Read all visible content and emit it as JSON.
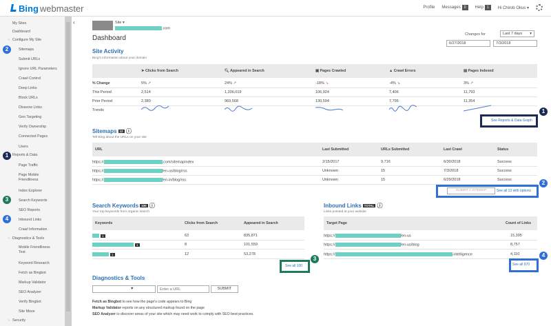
{
  "app": {
    "brand": "Bing",
    "product": "webmaster"
  },
  "topbar": {
    "profile": "Profile",
    "messages": "Messages",
    "messages_count": "0",
    "help": "Help",
    "help_count": "1",
    "user": "Hi Chirob Okus ▾"
  },
  "sidebar": {
    "items": [
      "My Sites",
      "Dashboard",
      "Configure My Site",
      "Sitemaps",
      "Submit URLs",
      "Ignore URL Parameters",
      "Crawl Control",
      "Deep Links",
      "Block URLs",
      "Disavow Links",
      "Geo Targeting",
      "Verify Ownership",
      "Connected Pages",
      "Users",
      "Reports & Data",
      "Page Traffic",
      "Page Mobile",
      "Friendliness",
      "Index Explorer",
      "Search Keywords",
      "SEO Reports",
      "Inbound Links",
      "Crawl Information",
      "Diagnostics & Tools",
      "Mobile Friendliness",
      "Test",
      "Keyword Research",
      "Fetch as Bingbot",
      "Markup Validator",
      "SEO Analyzer",
      "Verify Bingbot",
      "Site Move",
      "Security"
    ]
  },
  "badges": {
    "one": "1",
    "two": "2",
    "three": "3",
    "four": "4"
  },
  "header": {
    "site_label": "Site ▾",
    "site_suffix": ".com",
    "page_title": "Dashboard",
    "changes_for": "Changes for",
    "range": "Last 7 days",
    "date_from": "6/27/2018",
    "date_to": "7/3/2018"
  },
  "activity": {
    "title": "Site Activity",
    "sub": "Bing's information about your domain",
    "cols": [
      "Clicks from Search",
      "Appeared in Search",
      "Pages Crawled",
      "Crawl Errors",
      "Pages Indexed"
    ],
    "row_labels": [
      "% Change",
      "This Period",
      "Prior Period",
      "Trends"
    ],
    "change": [
      "5%",
      "24%",
      "-18%",
      "-4%",
      "3%"
    ],
    "this_period": [
      "2,514",
      "1,206,019",
      "106,924",
      "7,406",
      "11,793"
    ],
    "prior": [
      "2,380",
      "969,568",
      "130,594",
      "7,795",
      "11,354"
    ],
    "link": "See Reports & Data Graph"
  },
  "sitemaps": {
    "title": "Sitemaps",
    "count": "12",
    "sub": "Tell Bing about the URLs on your site",
    "headers": [
      "URL",
      "Last Submitted",
      "URLs Submitted",
      "Last Crawl",
      "Status"
    ],
    "rows": [
      {
        "prefix": "https://",
        "suffix": ".com/sitemapindex",
        "submitted": "2/15/2017",
        "urls": "9,716",
        "crawl": "6/30/2018",
        "status": "Success"
      },
      {
        "prefix": "https://",
        "suffix": "/en-us/blog/rss",
        "submitted": "Unknown",
        "urls": "15",
        "crawl": "7/3/2018",
        "status": "Success"
      },
      {
        "prefix": "https://",
        "suffix": "/en-in/blog/rss",
        "submitted": "Unknown",
        "urls": "15",
        "crawl": "6/29/2018",
        "status": "Success"
      }
    ],
    "submit": "SUBMIT A SITEMAP",
    "see_all": "See all 12 with options"
  },
  "keywords": {
    "title": "Search Keywords",
    "count": "100",
    "sub": "Your top keywords from organic search",
    "headers": [
      "Keywords",
      "Clicks from Search",
      "Appeared in Search"
    ],
    "rows": [
      {
        "chip": "1",
        "clicks": "63",
        "appeared": "835,871"
      },
      {
        "chip": "1",
        "clicks": "8",
        "appeared": "101,559"
      },
      {
        "chip": "1",
        "clicks": "12",
        "appeared": "53,278"
      }
    ],
    "see_all": "See all 100"
  },
  "inbound": {
    "title": "Inbound Links",
    "count": "TOTAL",
    "sub": "Links pointed at your website",
    "headers": [
      "Target Page",
      "Count of Links"
    ],
    "rows": [
      {
        "prefix": "https://",
        "suffix": "/en-us",
        "count": "15,395"
      },
      {
        "prefix": "https://",
        "suffix": "/en-us/blog",
        "count": "8,757"
      },
      {
        "prefix": "https://",
        "suffix": "-intelligence",
        "count": "4,110"
      }
    ],
    "see_all": "See all 970"
  },
  "diag": {
    "title": "Diagnostics & Tools",
    "url_placeholder": "Enter a URL",
    "submit": "SUBMIT",
    "lines": [
      {
        "b": "Fetch as Bingbot",
        "t": " to see how the page's code appears to Bing"
      },
      {
        "b": "Markup Validator",
        "t": " reports on any structured markup found on the page"
      },
      {
        "b": "SEO Analyzer",
        "t": " to discover areas of your site which may need work to comply with SEO best practices."
      }
    ]
  },
  "colors": {
    "accent": "#2c6fb5",
    "highlight": "#6fd0c4",
    "frame_dark": "#1b2a55",
    "frame_blue": "#2f6fd8",
    "frame_teal": "#1f7a5c"
  }
}
